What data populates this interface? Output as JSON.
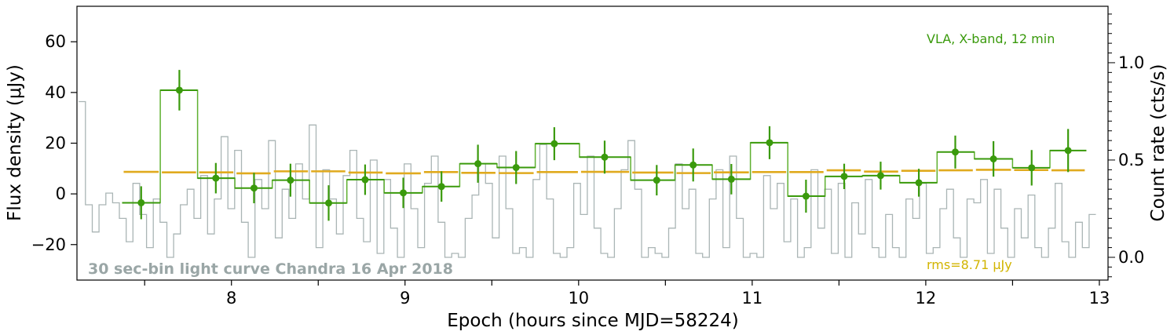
{
  "chart_data": {
    "type": "line",
    "xlabel": "Epoch (hours since MJD=58224)",
    "ylabel": "Flux density (μJy)",
    "ylabel_right": "Count rate (cts/s)",
    "xlim": [
      7.11,
      13.05
    ],
    "ylim": [
      -34,
      74
    ],
    "ylim_right": [
      -0.117,
      1.29
    ],
    "xticks": [
      8,
      9,
      10,
      11,
      12,
      13
    ],
    "yticks": [
      -20,
      0,
      20,
      40,
      60
    ],
    "yticks_right": [
      0.0,
      0.5,
      1.0
    ],
    "grid": false,
    "annotations": {
      "chandra": "30 sec-bin light curve Chandra 16 Apr 2018",
      "vla": "VLA, X-band, 12 min",
      "rms": "rms=8.71 μJy"
    },
    "colors": {
      "vla": "#3a9a0c",
      "vla_step": "#5fb030",
      "rms": "#e0aa1e",
      "chandra": "#aab5b5",
      "chandra_text": "#9aa6a6",
      "rms_text": "#d2b400"
    },
    "vla_series": {
      "x": [
        7.48,
        7.7,
        7.91,
        8.13,
        8.34,
        8.56,
        8.77,
        8.99,
        9.21,
        9.42,
        9.64,
        9.86,
        10.15,
        10.45,
        10.66,
        10.88,
        11.1,
        11.31,
        11.53,
        11.74,
        11.96,
        12.17,
        12.39,
        12.61,
        12.82
      ],
      "y": [
        -3.5,
        40.9,
        6.2,
        2.3,
        5.4,
        -3.6,
        5.6,
        0.4,
        2.9,
        11.9,
        10.4,
        19.8,
        14.5,
        5.4,
        11.4,
        5.8,
        20.2,
        -0.9,
        6.9,
        7.2,
        4.4,
        16.5,
        13.8,
        10.3,
        17.1
      ],
      "yerr": [
        6.5,
        8,
        6,
        6,
        6.5,
        7,
        6,
        6,
        6,
        7.5,
        6.5,
        6.5,
        6.5,
        6,
        6.5,
        6,
        6.5,
        6.5,
        5,
        5.5,
        5.5,
        6.5,
        7,
        7,
        8.5
      ],
      "rms": [
        8.7,
        8.5,
        8.5,
        8.1,
        8.9,
        8.9,
        8.4,
        8.1,
        8.6,
        8.3,
        8.2,
        8.6,
        8.7,
        8.4,
        8.2,
        8.5,
        8.6,
        8.6,
        9.3,
        8.8,
        9.1,
        9.3,
        9.5,
        9.4,
        9.3
      ]
    },
    "chandra_series": {
      "count_rate": [
        0.8,
        0.27,
        0.13,
        0.27,
        0.33,
        0.28,
        0.2,
        0.08,
        0.38,
        0.22,
        0.05,
        0.3,
        0.18,
        0.0,
        0.12,
        0.27,
        0.35,
        0.2,
        0.42,
        0.12,
        0.3,
        0.62,
        0.25,
        0.55,
        0.18,
        0.0,
        0.4,
        0.25,
        0.6,
        0.1,
        0.35,
        0.2,
        0.48,
        0.3,
        0.68,
        0.05,
        0.45,
        0.3,
        0.12,
        0.42,
        0.55,
        0.2,
        0.08,
        0.5,
        0.02,
        0.4,
        0.15,
        0.0,
        0.48,
        0.25,
        0.05,
        0.38,
        0.52,
        0.18,
        0.0,
        0.02,
        0.0,
        0.2,
        0.32,
        0.48,
        0.38,
        0.1,
        0.52,
        0.25,
        0.02,
        0.05,
        0.0,
        0.4,
        0.58,
        0.3,
        0.02,
        0.0,
        0.05,
        0.38,
        0.22,
        0.52,
        0.15,
        0.02,
        0.0,
        0.25,
        0.45,
        0.6,
        0.35,
        0.0,
        0.05,
        0.02,
        0.0,
        0.15,
        0.48,
        0.25,
        0.35,
        0.02,
        0.0,
        0.3,
        0.45,
        0.05,
        0.52,
        0.2,
        0.0,
        0.02,
        0.0,
        0.42,
        0.25,
        0.38,
        0.08,
        0.3,
        0.0,
        0.05,
        0.45,
        0.15,
        0.35,
        0.02,
        0.38,
        0.0,
        0.28,
        0.12,
        0.4,
        0.05,
        0.0,
        0.22,
        0.05,
        0.0,
        0.3,
        0.2,
        0.38,
        0.02,
        0.05,
        0.25,
        0.35,
        0.1,
        0.0,
        0.3,
        0.28,
        0.4,
        0.02,
        0.35,
        0.15,
        0.0,
        0.25,
        0.1,
        0.32,
        0.05,
        0.0,
        0.15,
        0.38,
        0.08,
        0.0,
        0.18,
        0.05,
        0.22
      ]
    }
  }
}
